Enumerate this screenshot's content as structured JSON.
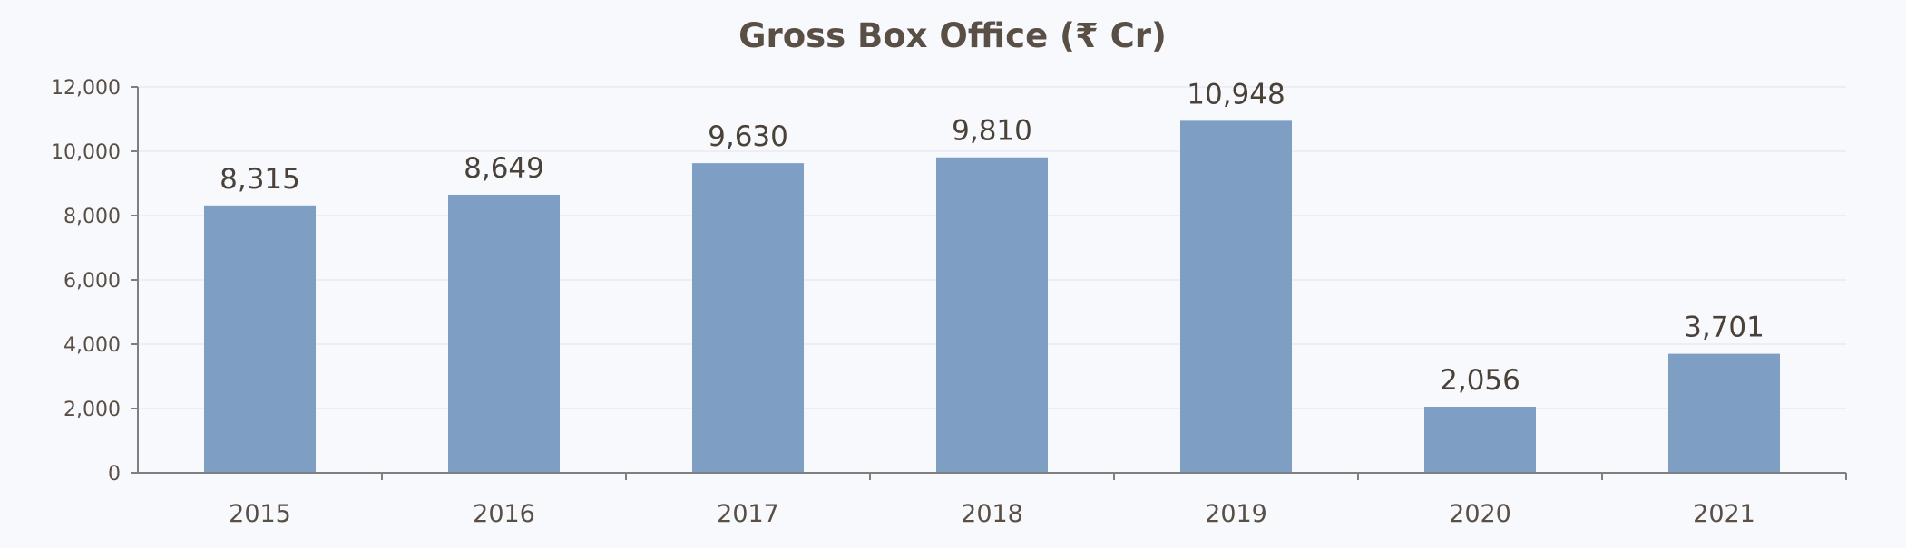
{
  "chart_data": {
    "type": "bar",
    "title": "Gross Box Office (₹ Cr)",
    "xlabel": "",
    "ylabel": "",
    "categories": [
      "2015",
      "2016",
      "2017",
      "2018",
      "2019",
      "2020",
      "2021"
    ],
    "values": [
      8315,
      8649,
      9630,
      9810,
      10948,
      2056,
      3701
    ],
    "data_labels": [
      "8,315",
      "8,649",
      "9,630",
      "9,810",
      "10,948",
      "2,056",
      "3,701"
    ],
    "y_ticks": [
      0,
      2000,
      4000,
      6000,
      8000,
      10000,
      12000
    ],
    "y_tick_labels": [
      "0",
      "2,000",
      "4,000",
      "6,000",
      "8,000",
      "10,000",
      "12,000"
    ],
    "ylim": [
      0,
      12000
    ],
    "grid": true,
    "legend": "none",
    "colors": {
      "bar": "#7f9ec4",
      "text": "#5a4f45",
      "label": "#4a4239",
      "grid": "#e8ebf1",
      "axis": "#7f7f7f",
      "background": "#f8f9fd"
    }
  }
}
